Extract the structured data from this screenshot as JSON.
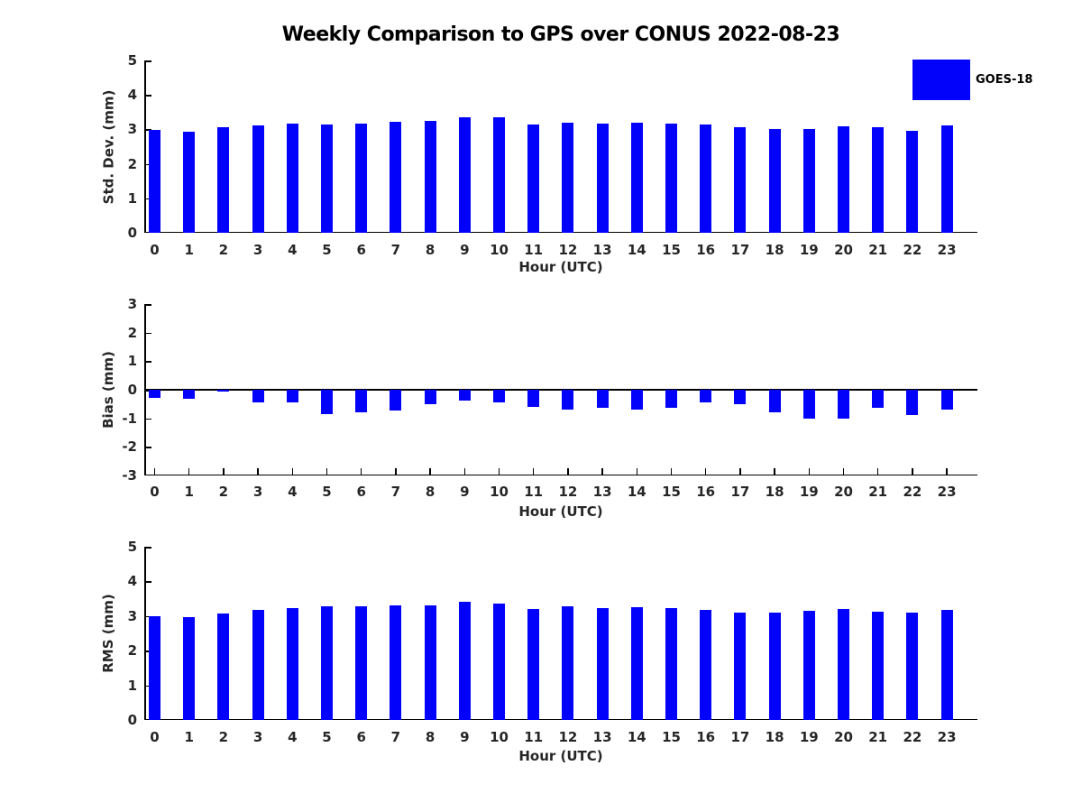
{
  "title": "Weekly Comparison to GPS over CONUS 2022-08-23",
  "legend": {
    "label": "GOES-18",
    "color": "#0202fa"
  },
  "bar_color": "#0202fa",
  "chart_data": [
    {
      "type": "bar",
      "name": "std-dev",
      "series_name": "GOES-18",
      "ylabel": "Std. Dev. (mm)",
      "xlabel": "Hour (UTC)",
      "ylim": [
        0,
        5
      ],
      "yticks": [
        5,
        4,
        3,
        2,
        1,
        0
      ],
      "grid": false,
      "legend_position": "top-right-outside",
      "categories": [
        "0",
        "1",
        "2",
        "3",
        "4",
        "5",
        "6",
        "7",
        "8",
        "9",
        "10",
        "11",
        "12",
        "13",
        "14",
        "15",
        "16",
        "17",
        "18",
        "19",
        "20",
        "21",
        "22",
        "23"
      ],
      "values": [
        2.98,
        2.93,
        3.07,
        3.12,
        3.18,
        3.15,
        3.17,
        3.22,
        3.25,
        3.34,
        3.35,
        3.15,
        3.2,
        3.16,
        3.2,
        3.16,
        3.13,
        3.05,
        3.01,
        3.0,
        3.09,
        3.05,
        2.95,
        3.12
      ]
    },
    {
      "type": "bar",
      "name": "bias",
      "series_name": "GOES-18",
      "ylabel": "Bias (mm)",
      "xlabel": "Hour (UTC)",
      "ylim": [
        -3,
        3
      ],
      "yticks": [
        3,
        2,
        1,
        0,
        -1,
        -2,
        -3
      ],
      "grid": false,
      "categories": [
        "0",
        "1",
        "2",
        "3",
        "4",
        "5",
        "6",
        "7",
        "8",
        "9",
        "10",
        "11",
        "12",
        "13",
        "14",
        "15",
        "16",
        "17",
        "18",
        "19",
        "20",
        "21",
        "22",
        "23"
      ],
      "values": [
        -0.29,
        -0.3,
        -0.07,
        -0.43,
        -0.45,
        -0.86,
        -0.8,
        -0.72,
        -0.52,
        -0.39,
        -0.45,
        -0.6,
        -0.71,
        -0.62,
        -0.71,
        -0.63,
        -0.43,
        -0.49,
        -0.8,
        -1.02,
        -1.0,
        -0.64,
        -0.87,
        -0.69
      ]
    },
    {
      "type": "bar",
      "name": "rms",
      "series_name": "GOES-18",
      "ylabel": "RMS (mm)",
      "xlabel": "Hour (UTC)",
      "ylim": [
        0,
        5
      ],
      "yticks": [
        5,
        4,
        3,
        2,
        1,
        0
      ],
      "grid": false,
      "categories": [
        "0",
        "1",
        "2",
        "3",
        "4",
        "5",
        "6",
        "7",
        "8",
        "9",
        "10",
        "11",
        "12",
        "13",
        "14",
        "15",
        "16",
        "17",
        "18",
        "19",
        "20",
        "21",
        "22",
        "23"
      ],
      "values": [
        3.0,
        2.96,
        3.08,
        3.17,
        3.22,
        3.28,
        3.28,
        3.31,
        3.31,
        3.41,
        3.37,
        3.2,
        3.27,
        3.23,
        3.26,
        3.23,
        3.17,
        3.1,
        3.1,
        3.15,
        3.2,
        3.12,
        3.1,
        3.18
      ]
    }
  ]
}
